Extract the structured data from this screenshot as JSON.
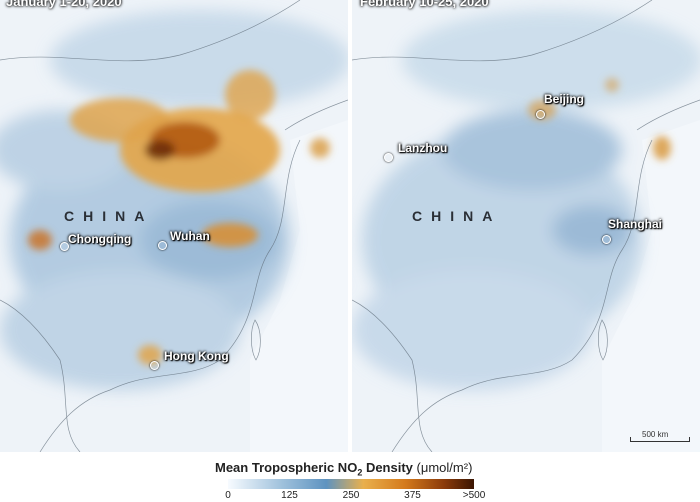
{
  "panels": [
    {
      "date": "January 1-20, 2020",
      "country": "CHINA",
      "cities": [
        "Chongqing",
        "Wuhan",
        "Hong Kong"
      ]
    },
    {
      "date": "February 10-25, 2020",
      "country": "CHINA",
      "cities": [
        "Beijing",
        "Lanzhou",
        "Shanghai"
      ]
    }
  ],
  "scale_bar": "500 km",
  "legend": {
    "title_prefix": "Mean Tropospheric NO",
    "title_subscript": "2",
    "title_suffix": " Density",
    "unit": "(μmol/m²)",
    "ticks": [
      "0",
      "125",
      "250",
      "375",
      ">500"
    ],
    "colors": {
      "low": "#f7fbff",
      "mid_blue": "#5e93c0",
      "mid_orange": "#e9b04d",
      "high": "#3b1502"
    }
  }
}
